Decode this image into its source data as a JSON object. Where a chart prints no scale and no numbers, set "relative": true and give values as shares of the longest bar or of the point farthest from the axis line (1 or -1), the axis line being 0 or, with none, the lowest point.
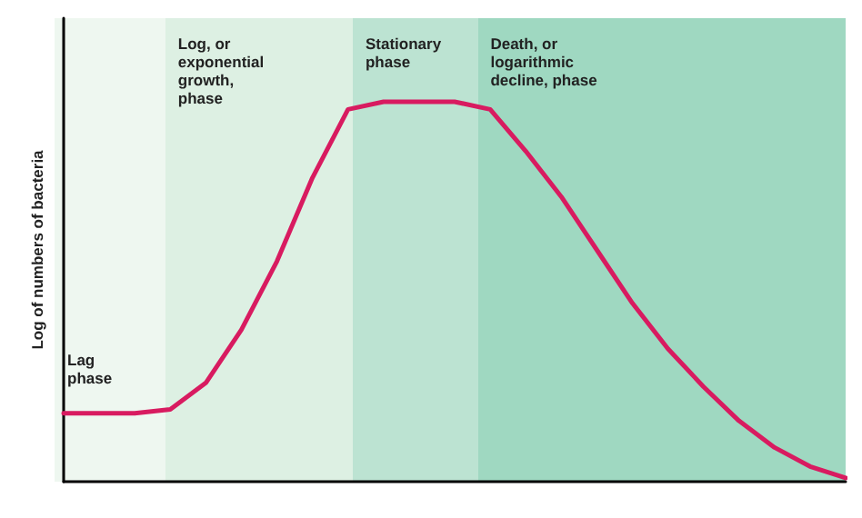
{
  "chart_data": {
    "type": "line",
    "relative": true,
    "ylabel": "Log of numbers of bacteria",
    "tick_labels": false,
    "grid": false,
    "marker": "none",
    "line_style": "solid",
    "categories": [
      null,
      null,
      null,
      null,
      null,
      null,
      null,
      null,
      null,
      null,
      null,
      null,
      null,
      null,
      null,
      null,
      null,
      null,
      null,
      null,
      null,
      null,
      null
    ],
    "series": [
      {
        "color": "#d81b60",
        "values": [
          0.18,
          0.18,
          0.18,
          0.19,
          0.26,
          0.4,
          0.58,
          0.8,
          0.98,
          1,
          1,
          1,
          0.98,
          0.87,
          0.75,
          0.61,
          0.47,
          0.35,
          0.25,
          0.16,
          0.09,
          0.04,
          0.01
        ]
      }
    ],
    "annotations": [
      "Lag\nphase",
      "Log, or\nexponential\ngrowth,\nphase",
      "Stationary\nphase",
      "Death, or\nlogarithmic\ndecline, phase"
    ]
  }
}
